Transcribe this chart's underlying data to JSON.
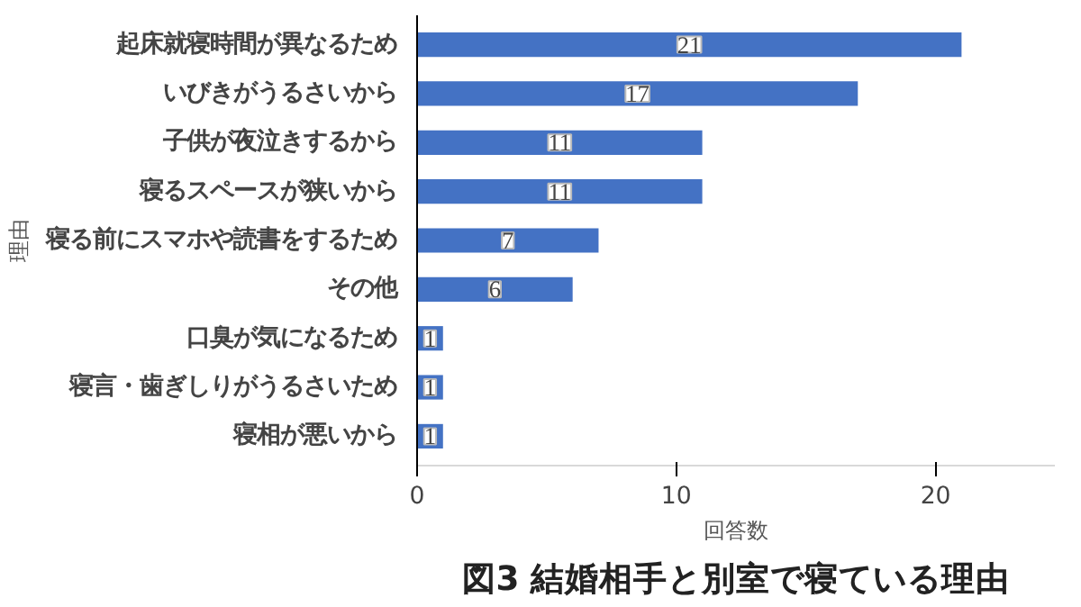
{
  "chart_data": {
    "type": "bar",
    "orientation": "horizontal",
    "title": "図3 結婚相手と別室で寝ている理由",
    "xlabel": "回答数",
    "ylabel": "理由",
    "categories": [
      "起床就寝時間が異なるため",
      "いびきがうるさいから",
      "子供が夜泣きするから",
      "寝るスペースが狭いから",
      "寝る前にスマホや読書をするため",
      "その他",
      "口臭が気になるため",
      "寝言・歯ぎしりがうるさいため",
      "寝相が悪いから"
    ],
    "values": [
      21,
      17,
      11,
      11,
      7,
      6,
      1,
      1,
      1
    ],
    "color": "#4472c4",
    "xlim": [
      0,
      24.6
    ],
    "xticks": [
      0,
      10,
      20
    ],
    "data_labels": true,
    "grid": false
  }
}
